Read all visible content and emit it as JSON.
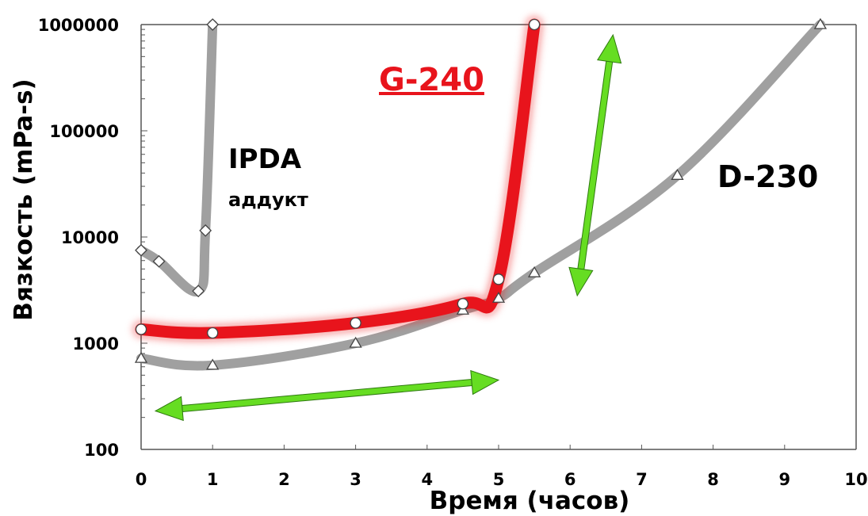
{
  "chart_data": {
    "type": "line",
    "title": "",
    "xlabel": "Время (часов)",
    "ylabel": "Вязкость  (mPa-s)",
    "x_ticks": [
      "0",
      "1",
      "2",
      "3",
      "4",
      "5",
      "6",
      "7",
      "8",
      "9",
      "10"
    ],
    "y_ticks": [
      "100",
      "1000",
      "10000",
      "100000",
      "1000000"
    ],
    "xlim": [
      0,
      10
    ],
    "ylim": [
      100,
      1000000
    ],
    "y_scale": "log",
    "grid": false,
    "series": [
      {
        "name": "IPDA",
        "sublabel": "аддукт",
        "color": "#a0a0a0",
        "marker": "diamond",
        "points": [
          [
            0,
            7500
          ],
          [
            0.25,
            5900
          ],
          [
            0.8,
            3100
          ],
          [
            0.9,
            11500
          ],
          [
            1.0,
            1000000
          ]
        ]
      },
      {
        "name": "G-240",
        "color": "#e8141c",
        "marker": "circle",
        "points": [
          [
            0,
            1350
          ],
          [
            1.0,
            1250
          ],
          [
            3.0,
            1550
          ],
          [
            4.5,
            2350
          ],
          [
            5.0,
            4000
          ],
          [
            5.5,
            1000000
          ]
        ]
      },
      {
        "name": "D-230",
        "color": "#a0a0a0",
        "marker": "triangle",
        "points": [
          [
            0,
            720
          ],
          [
            1.0,
            620
          ],
          [
            3.0,
            1000
          ],
          [
            4.5,
            2050
          ],
          [
            5.0,
            2650
          ],
          [
            5.5,
            4600
          ],
          [
            7.5,
            38000
          ],
          [
            9.5,
            1000000
          ]
        ]
      }
    ],
    "annotations": [
      {
        "type": "double-arrow",
        "color": "#66dd22",
        "from": [
          0.2,
          230
        ],
        "to": [
          5.0,
          450
        ]
      },
      {
        "type": "double-arrow",
        "color": "#66dd22",
        "from": [
          6.6,
          800000
        ],
        "to": [
          6.1,
          2800
        ]
      }
    ]
  }
}
